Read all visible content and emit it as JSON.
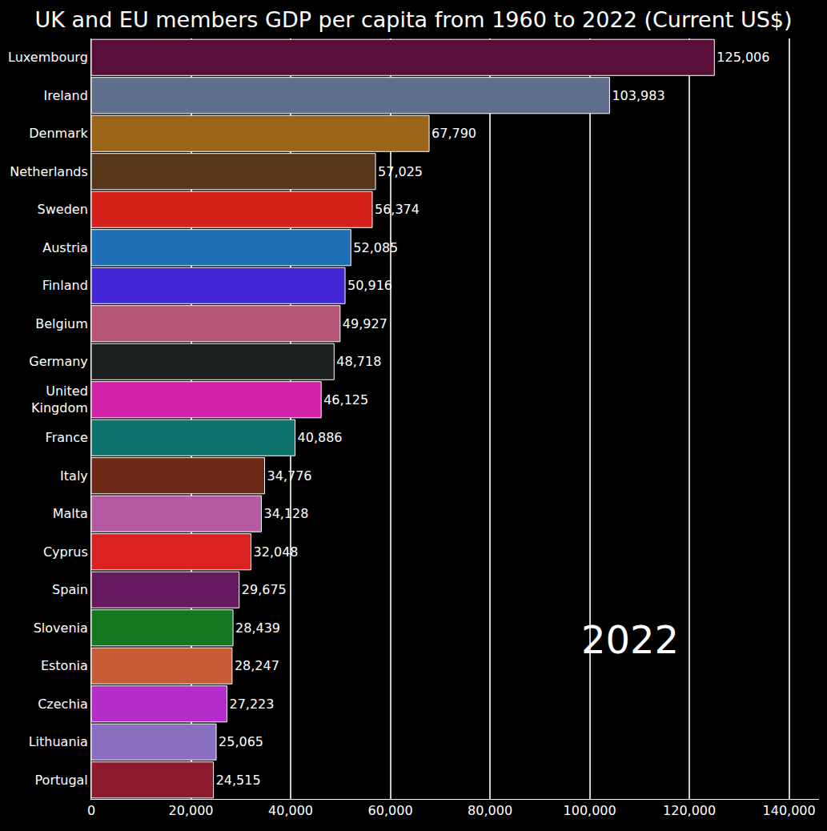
{
  "chart_data": {
    "type": "bar",
    "orientation": "horizontal",
    "title": "UK and EU members GDP per capita from 1960 to 2022 (Current US$)",
    "annotations": [
      "2022"
    ],
    "categories": [
      "Luxembourg",
      "Ireland",
      "Denmark",
      "Netherlands",
      "Sweden",
      "Austria",
      "Finland",
      "Belgium",
      "Germany",
      "United\nKingdom",
      "France",
      "Italy",
      "Malta",
      "Cyprus",
      "Spain",
      "Slovenia",
      "Estonia",
      "Czechia",
      "Lithuania",
      "Portugal"
    ],
    "values": [
      125006,
      103983,
      67790,
      57025,
      56374,
      52085,
      50916,
      49927,
      48718,
      46125,
      40886,
      34776,
      34128,
      32048,
      29675,
      28439,
      28247,
      27223,
      25065,
      24515
    ],
    "value_labels": [
      "125,006",
      "103,983",
      "67,790",
      "57,025",
      "56,374",
      "52,085",
      "50,916",
      "49,927",
      "48,718",
      "46,125",
      "40,886",
      "34,776",
      "34,128",
      "32,048",
      "29,675",
      "28,439",
      "28,247",
      "27,223",
      "25,065",
      "24,515"
    ],
    "colors": [
      "#58103a",
      "#5f6e8c",
      "#9a6419",
      "#573619",
      "#d6201a",
      "#1f6fb5",
      "#4326d6",
      "#b55577",
      "#1c2020",
      "#d422a8",
      "#0d736c",
      "#6e2a17",
      "#b55aa0",
      "#dc2121",
      "#651a60",
      "#157820",
      "#c65b36",
      "#b42cc9",
      "#8a6ec0",
      "#8e1a2e"
    ],
    "data_labels": true,
    "grid": true,
    "xlim": [
      0,
      146000
    ],
    "xticks": [
      0,
      {
        "value": 20000,
        "label": "20,000"
      },
      {
        "value": 40000,
        "label": "40,000"
      },
      {
        "value": 60000,
        "label": "60,000"
      },
      {
        "value": 80000,
        "label": "80,000"
      },
      {
        "value": 100000,
        "label": "100,000"
      },
      {
        "value": 120000,
        "label": "120,000"
      },
      {
        "value": 140000,
        "label": "140,000"
      }
    ]
  }
}
